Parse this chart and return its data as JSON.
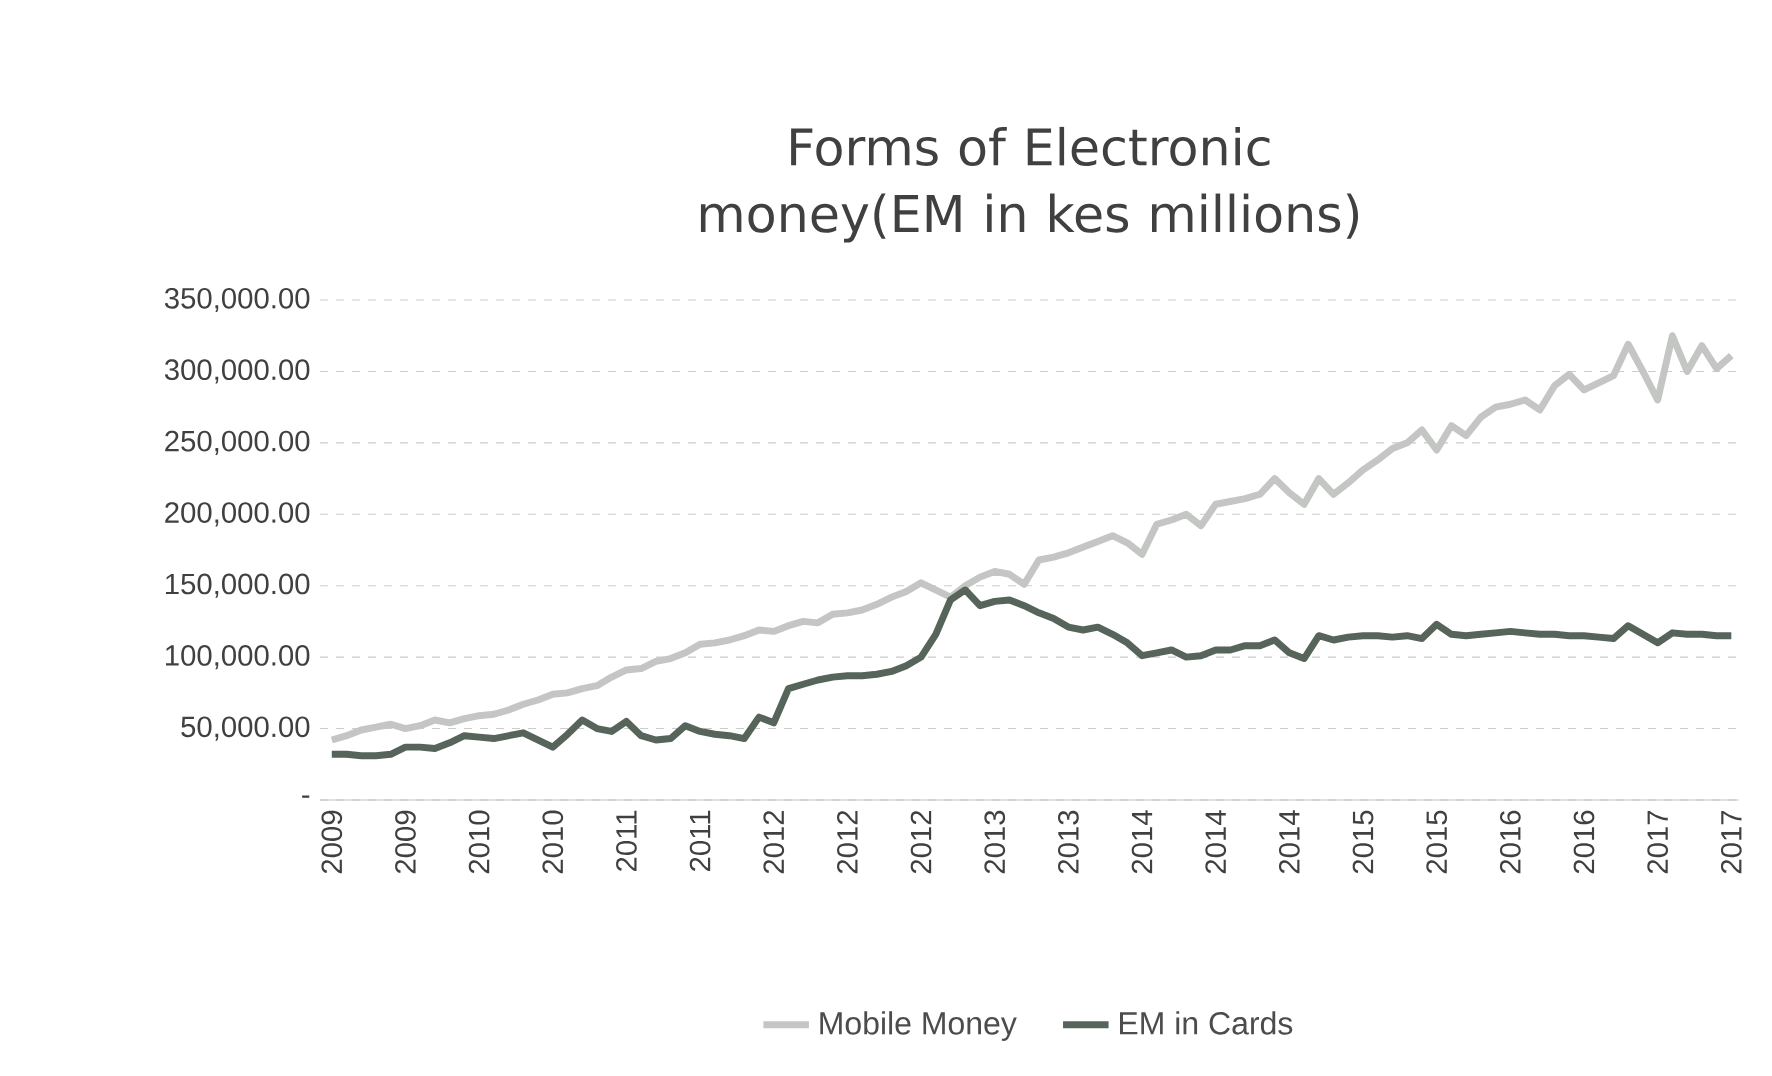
{
  "chart_data": {
    "type": "line",
    "title": "Forms of Electronic money(EM in kes millions)",
    "categories": [
      "2009",
      null,
      null,
      null,
      null,
      "2009",
      null,
      null,
      null,
      null,
      "2010",
      null,
      null,
      null,
      null,
      "2010",
      null,
      null,
      null,
      null,
      "2011",
      null,
      null,
      null,
      null,
      "2011",
      null,
      null,
      null,
      null,
      "2012",
      null,
      null,
      null,
      null,
      "2012",
      null,
      null,
      null,
      null,
      "2012",
      null,
      null,
      null,
      null,
      "2013",
      null,
      null,
      null,
      null,
      "2013",
      null,
      null,
      null,
      null,
      "2014",
      null,
      null,
      null,
      null,
      "2014",
      null,
      null,
      null,
      null,
      "2014",
      null,
      null,
      null,
      null,
      "2015",
      null,
      null,
      null,
      null,
      "2015",
      null,
      null,
      null,
      null,
      "2016",
      null,
      null,
      null,
      null,
      "2016",
      null,
      null,
      null,
      null,
      "2017",
      null,
      null,
      null,
      null,
      "2017"
    ],
    "series": [
      {
        "name": "Mobile Money",
        "color": "#c4c6c4",
        "values": [
          42000,
          45000,
          49000,
          51000,
          53000,
          50000,
          52000,
          56000,
          54000,
          57000,
          59000,
          60000,
          63000,
          67000,
          70000,
          74000,
          75000,
          78000,
          80000,
          86000,
          91000,
          92000,
          97000,
          99000,
          103000,
          109000,
          110000,
          112000,
          115000,
          119000,
          118000,
          122000,
          125000,
          124000,
          130000,
          131000,
          133000,
          137000,
          142000,
          146000,
          152000,
          147000,
          142000,
          150000,
          156000,
          160000,
          158000,
          151000,
          168000,
          170000,
          173000,
          177000,
          181000,
          185000,
          180000,
          172000,
          193000,
          196000,
          200000,
          192000,
          207000,
          209000,
          211000,
          214000,
          225000,
          215000,
          207000,
          225000,
          214000,
          222000,
          231000,
          238000,
          246000,
          250000,
          259000,
          245000,
          262000,
          255000,
          268000,
          275000,
          277000,
          280000,
          273000,
          290000,
          298000,
          287000,
          292000,
          297000,
          319000,
          300000,
          280000,
          325000,
          300000,
          318000,
          302000,
          311000
        ]
      },
      {
        "name": "EM in Cards",
        "color": "#56645a",
        "values": [
          32000,
          32000,
          31000,
          31000,
          32000,
          37000,
          37000,
          36000,
          40000,
          45000,
          44000,
          43000,
          45000,
          47000,
          42000,
          37000,
          46000,
          56000,
          50000,
          48000,
          55000,
          45000,
          42000,
          43000,
          52000,
          48000,
          46000,
          45000,
          43000,
          58000,
          54000,
          78000,
          81000,
          84000,
          86000,
          87000,
          87000,
          88000,
          90000,
          94000,
          100000,
          116000,
          140000,
          147000,
          136000,
          139000,
          140000,
          136000,
          131000,
          127000,
          121000,
          119000,
          121000,
          116000,
          110000,
          101000,
          103000,
          105000,
          100000,
          101000,
          105000,
          105000,
          108000,
          108000,
          112000,
          103000,
          99000,
          115000,
          112000,
          114000,
          115000,
          115000,
          114000,
          115000,
          113000,
          123000,
          116000,
          115000,
          116000,
          117000,
          118000,
          117000,
          116000,
          116000,
          115000,
          115000,
          114000,
          113000,
          122000,
          116000,
          110000,
          117000,
          116000,
          116000,
          115000,
          115000
        ]
      }
    ],
    "ylim": [
      0,
      350000
    ],
    "yticks": [
      {
        "value": 0,
        "label": "-"
      },
      {
        "value": 50000,
        "label": "50,000.00"
      },
      {
        "value": 100000,
        "label": "100,000.00"
      },
      {
        "value": 150000,
        "label": "150,000.00"
      },
      {
        "value": 200000,
        "label": "200,000.00"
      },
      {
        "value": 250000,
        "label": "250,000.00"
      },
      {
        "value": 300000,
        "label": "300,000.00"
      },
      {
        "value": 350000,
        "label": "350,000.00"
      }
    ],
    "grid": "y",
    "legend": "bottom",
    "line_style": "solid"
  }
}
